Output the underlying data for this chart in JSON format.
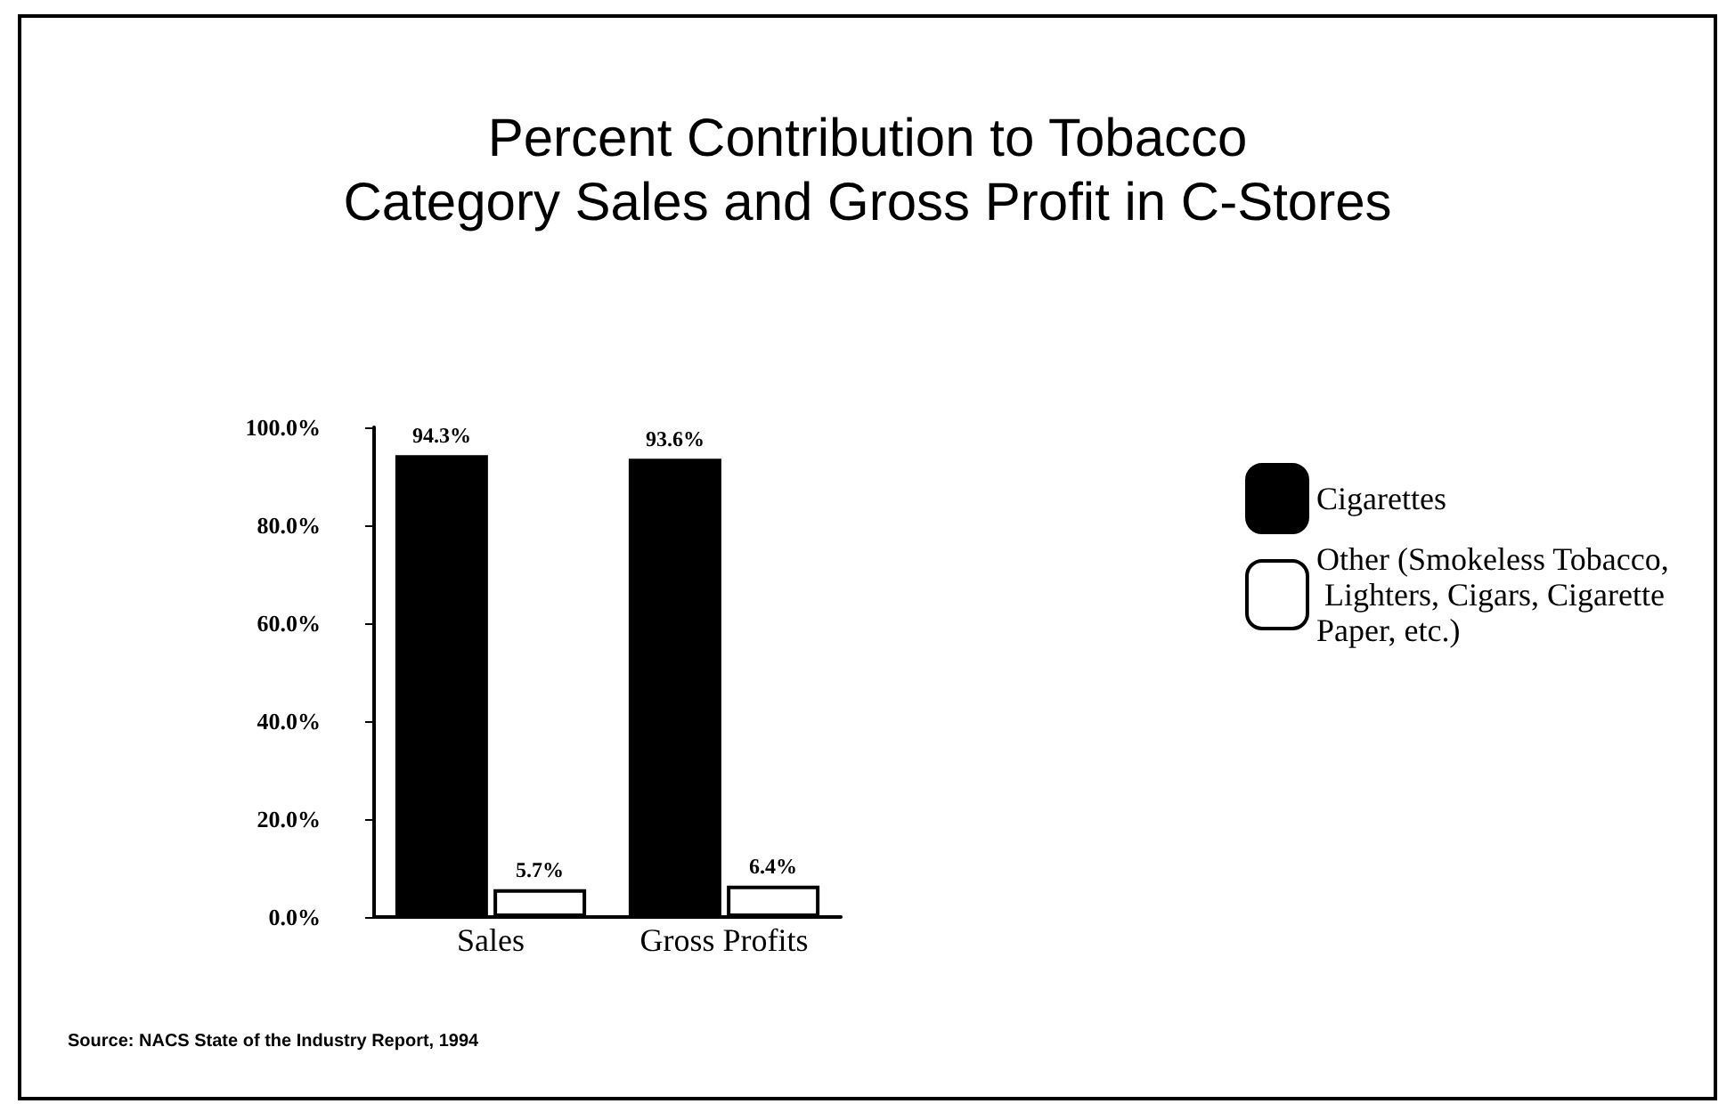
{
  "chart_data": {
    "type": "bar",
    "title": "Percent Contribution to Tobacco\nCategory Sales and Gross Profit in C-Stores",
    "categories": [
      "Sales",
      "Gross Profits"
    ],
    "series": [
      {
        "name": "Cigarettes",
        "color": "#000000",
        "values": [
          94.3,
          93.6
        ]
      },
      {
        "name": "Other (Smokeless Tobacco, Lighters, Cigars, Cigarette Paper, etc.)",
        "color": "#ffffff",
        "values": [
          5.7,
          6.4
        ]
      }
    ],
    "ylim": [
      0,
      100
    ],
    "yticks": [
      {
        "value": 0,
        "label": "0.0%"
      },
      {
        "value": 20,
        "label": "20.0%"
      },
      {
        "value": 40,
        "label": "40.0%"
      },
      {
        "value": 60,
        "label": "60.0%"
      },
      {
        "value": 80,
        "label": "80.0%"
      },
      {
        "value": 100,
        "label": "100.0%"
      }
    ],
    "value_labels": [
      [
        "94.3%",
        "93.6%"
      ],
      [
        "5.7%",
        "6.4%"
      ]
    ],
    "grid": false,
    "legend": "right",
    "annotations": [
      "Source: NACS State of the Industry Report, 1994"
    ]
  }
}
